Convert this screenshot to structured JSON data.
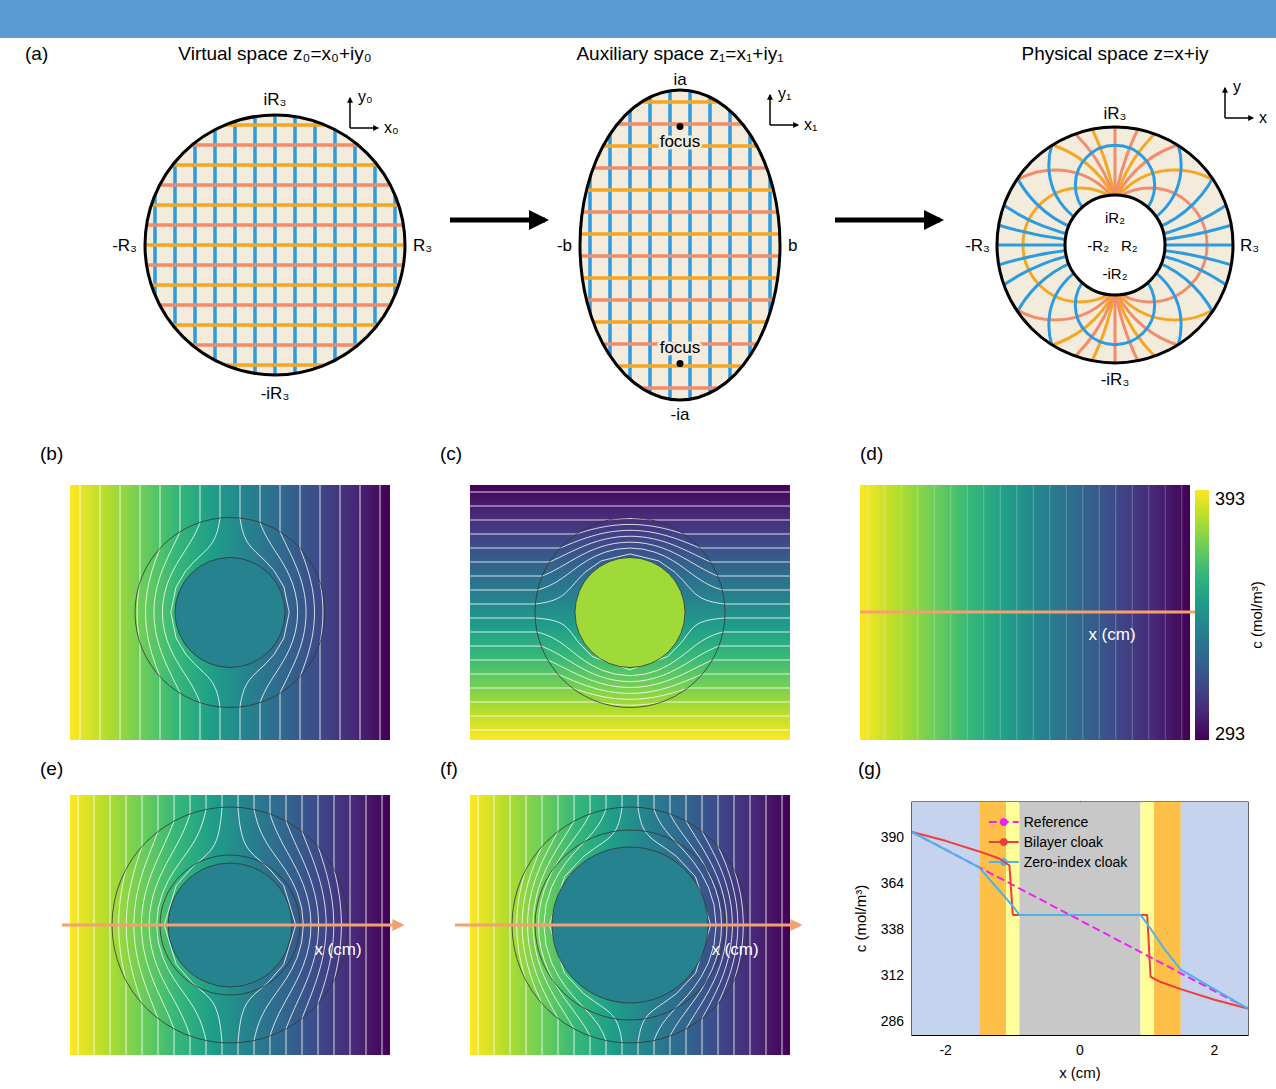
{
  "panels": {
    "a": {
      "label": "(a)",
      "spaces": [
        {
          "title": "Virtual space z₀=x₀+iy₀",
          "labels": {
            "top": "iR₃",
            "bottom": "-iR₃",
            "left": "-R₃",
            "right": "R₃",
            "x_axis": "x₀",
            "y_axis": "y₀"
          }
        },
        {
          "title": "Auxiliary space z₁=x₁+iy₁",
          "labels": {
            "top": "ia",
            "bottom": "-ia",
            "left": "-b",
            "right": "b",
            "x_axis": "x₁",
            "y_axis": "y₁",
            "focus_top": "focus",
            "focus_bottom": "focus"
          }
        },
        {
          "title": "Physical space z=x+iy",
          "labels": {
            "top": "iR₃",
            "bottom": "-iR₃",
            "left": "-R₃",
            "right": "R₃",
            "inner_top": "iR₂",
            "inner_bottom": "-iR₂",
            "inner_left": "-R₂",
            "inner_right": "R₂",
            "x_axis": "x",
            "y_axis": "y"
          }
        }
      ]
    },
    "b": {
      "label": "(b)"
    },
    "c": {
      "label": "(c)"
    },
    "d": {
      "label": "(d)",
      "arrow_label": "x (cm)"
    },
    "e": {
      "label": "(e)",
      "arrow_label": "x (cm)"
    },
    "f": {
      "label": "(f)",
      "arrow_label": "x (cm)"
    },
    "g": {
      "label": "(g)"
    }
  },
  "colorbar": {
    "min": 293,
    "max": 393,
    "label": "c (mol/m³)"
  },
  "chart_data": {
    "type": "line",
    "x_label": "x (cm)",
    "y_label": "c (mol/m³)",
    "xlim": [
      -2.5,
      2.5
    ],
    "xticks": [
      -2,
      0,
      2
    ],
    "ylim": [
      278,
      410
    ],
    "yticks": [
      286,
      312,
      338,
      364,
      390
    ],
    "grid": false,
    "legend": "top",
    "regions": [
      {
        "from": -2.5,
        "to": -1.5,
        "color": "#c5d3ee"
      },
      {
        "from": -1.5,
        "to": -1.1,
        "color": "#ffc04a"
      },
      {
        "from": -1.1,
        "to": -0.9,
        "color": "#ffff99"
      },
      {
        "from": -0.9,
        "to": 0.9,
        "color": "#c8c8c8"
      },
      {
        "from": 0.9,
        "to": 1.1,
        "color": "#ffff99"
      },
      {
        "from": 1.1,
        "to": 1.5,
        "color": "#ffc04a"
      },
      {
        "from": 1.5,
        "to": 2.5,
        "color": "#c5d3ee"
      }
    ],
    "series": [
      {
        "name": "Reference",
        "color": "#f020f0",
        "line_style": "dashed",
        "x": [
          -2.5,
          -1.25,
          0,
          1.25,
          2.5
        ],
        "values": [
          393,
          368,
          343,
          318,
          293
        ]
      },
      {
        "name": "Bilayer cloak",
        "color": "#f03c3c",
        "line_style": "solid",
        "x": [
          -2.5,
          -2.0,
          -1.5,
          -1.2,
          -1.05,
          -1.0,
          1.0,
          1.05,
          1.2,
          1.5,
          2.0,
          2.5
        ],
        "values": [
          393,
          388,
          382,
          378,
          374,
          346,
          346,
          311,
          308,
          304,
          298,
          293
        ]
      },
      {
        "name": "Zero-index cloak",
        "color": "#4fb3ea",
        "line_style": "solid",
        "x": [
          -2.5,
          -1.5,
          -1.25,
          -1.0,
          -0.9,
          0.9,
          1.0,
          1.25,
          1.5,
          2.5
        ],
        "values": [
          393,
          373,
          362,
          351,
          346,
          346,
          341,
          327,
          315,
          293
        ]
      }
    ]
  }
}
